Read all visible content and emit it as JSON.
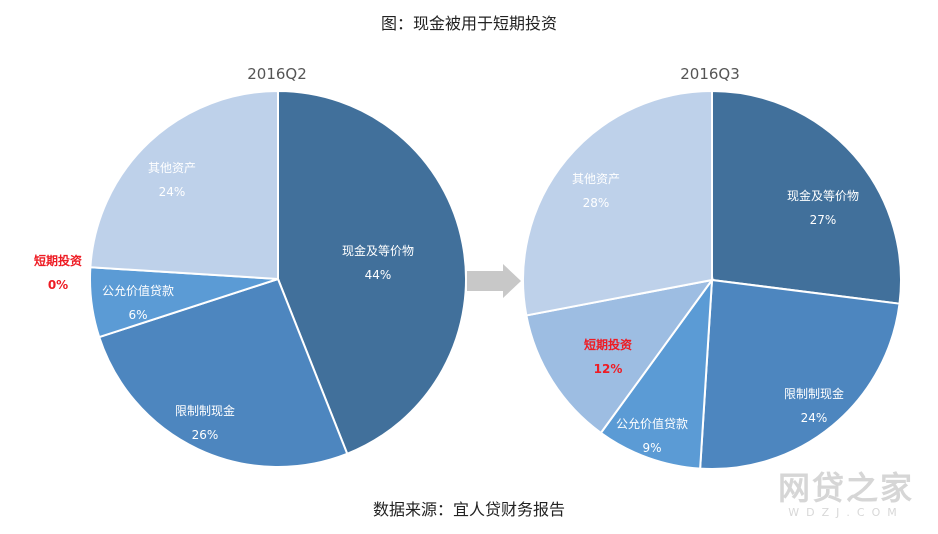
{
  "figure": {
    "title": "图：现金被用于短期投资",
    "source": "数据来源：宜人贷财务报告",
    "watermark": {
      "main": "网贷之家",
      "sub": "WDZJ.COM"
    },
    "colors": {
      "cash": "#41709b",
      "restricted": "#4d86bf",
      "loans": "#5b9bd5",
      "short_term": "#9dbde2",
      "other": "#bed1ea",
      "highlight": "#ee1c24",
      "arrow": "#c8c8c8"
    }
  },
  "chart_data": [
    {
      "type": "pie",
      "title": "2016Q2",
      "slices": [
        {
          "key": "cash",
          "name": "现金及等价物",
          "value": 44,
          "label": "44%",
          "highlight": false
        },
        {
          "key": "restricted",
          "name": "限制制现金",
          "value": 26,
          "label": "26%",
          "highlight": false
        },
        {
          "key": "loans",
          "name": "公允价值贷款",
          "value": 6,
          "label": "6%",
          "highlight": false
        },
        {
          "key": "short_term",
          "name": "短期投资",
          "value": 0,
          "label": "0%",
          "highlight": true
        },
        {
          "key": "other",
          "name": "其他资产",
          "value": 24,
          "label": "24%",
          "highlight": false
        }
      ]
    },
    {
      "type": "pie",
      "title": "2016Q3",
      "slices": [
        {
          "key": "cash",
          "name": "现金及等价物",
          "value": 27,
          "label": "27%",
          "highlight": false
        },
        {
          "key": "restricted",
          "name": "限制制现金",
          "value": 24,
          "label": "24%",
          "highlight": false
        },
        {
          "key": "loans",
          "name": "公允价值贷款",
          "value": 9,
          "label": "9%",
          "highlight": false
        },
        {
          "key": "short_term",
          "name": "短期投资",
          "value": 12,
          "label": "12%",
          "highlight": true
        },
        {
          "key": "other",
          "name": "其他资产",
          "value": 28,
          "label": "28%",
          "highlight": false
        }
      ]
    }
  ]
}
